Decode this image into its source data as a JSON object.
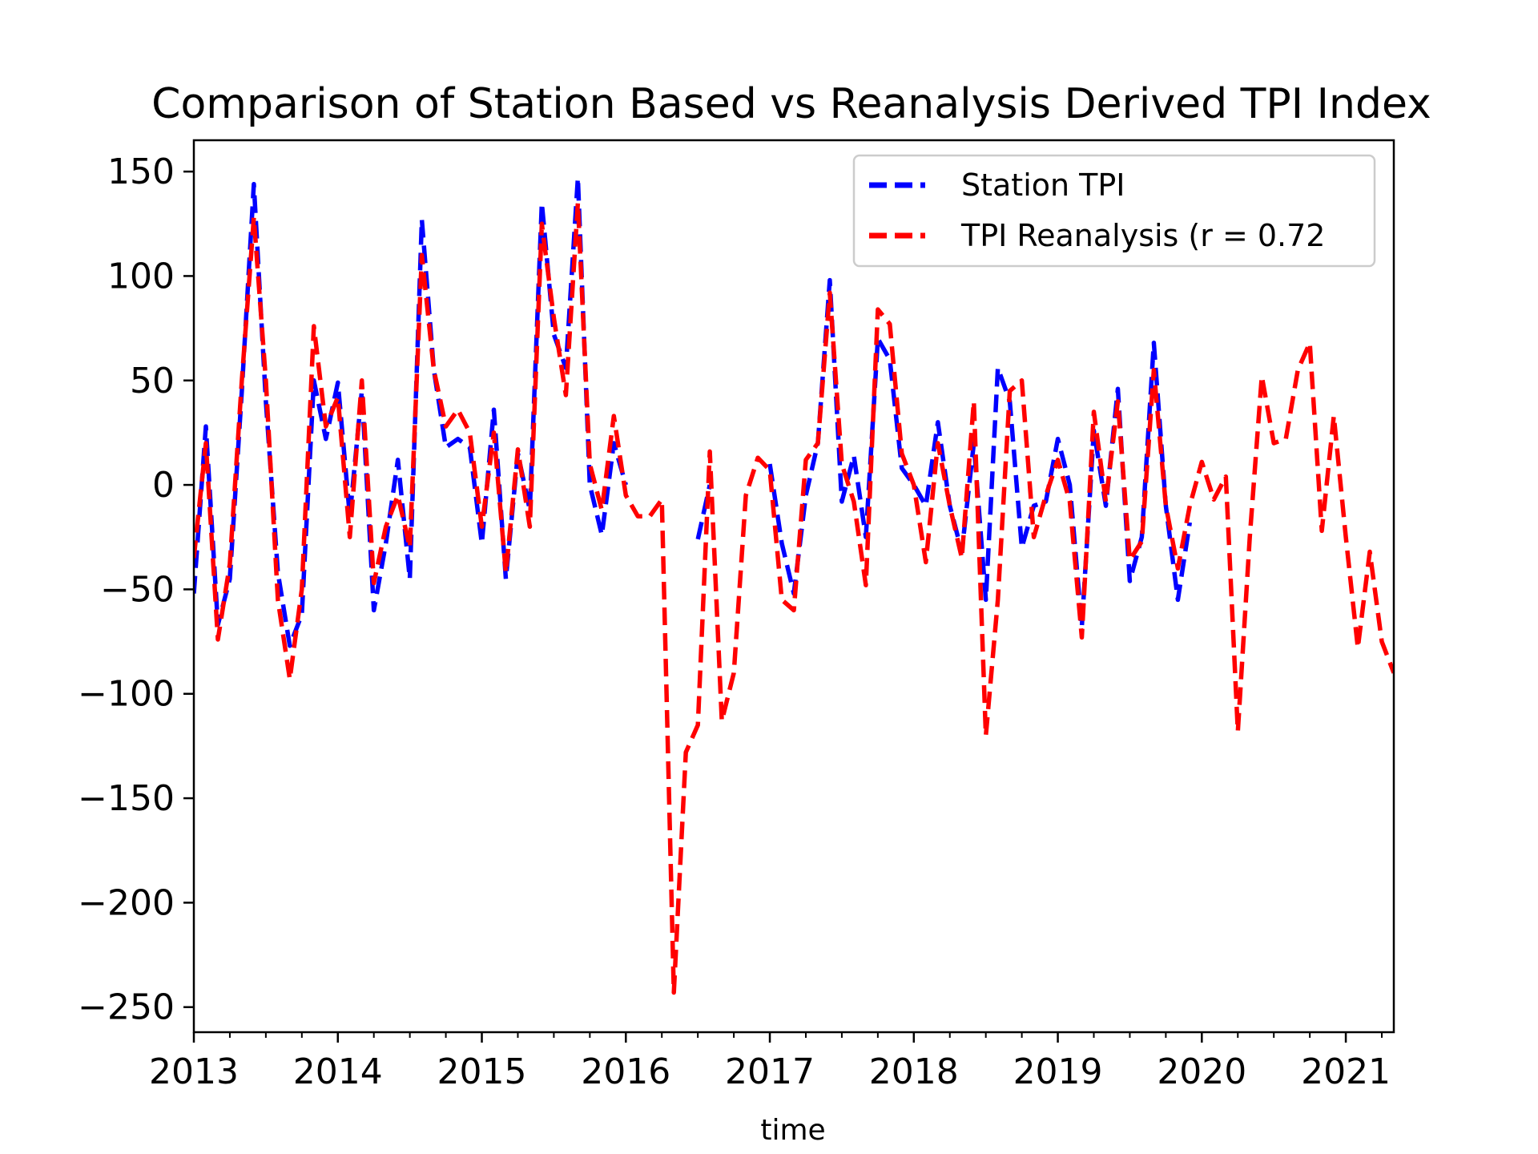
{
  "chart_data": {
    "type": "line",
    "title": "Comparison of Station Based vs Reanalysis Derived TPI Index",
    "xlabel": "time",
    "ylabel": "",
    "xlim": [
      "2013-01",
      "2021-05"
    ],
    "ylim": [
      -262,
      165
    ],
    "x_ticks": [
      "2013",
      "2014",
      "2015",
      "2016",
      "2017",
      "2018",
      "2019",
      "2020",
      "2021"
    ],
    "y_ticks": [
      150,
      100,
      50,
      0,
      -50,
      -100,
      -150,
      -200,
      -250
    ],
    "y_tick_labels": [
      "150",
      "100",
      "50",
      "0",
      "−50",
      "−100",
      "−150",
      "−200",
      "−250"
    ],
    "grid": false,
    "legend_position": "top-right",
    "colors": {
      "station": "#0000ff",
      "reanalysis": "#ff0000"
    },
    "series": [
      {
        "name": "Station TPI",
        "color": "#0000ff",
        "style": "dashed",
        "points": [
          [
            "2013-01",
            -52
          ],
          [
            "2013-02",
            28
          ],
          [
            "2013-03",
            -67
          ],
          [
            "2013-04",
            -45
          ],
          [
            "2013-05",
            45
          ],
          [
            "2013-06",
            144
          ],
          [
            "2013-07",
            40
          ],
          [
            "2013-08",
            -42
          ],
          [
            "2013-09",
            -77
          ],
          [
            "2013-10",
            -62
          ],
          [
            "2013-11",
            50
          ],
          [
            "2013-12",
            22
          ],
          [
            "2014-01",
            49
          ],
          [
            "2014-02",
            -15
          ],
          [
            "2014-03",
            45
          ],
          [
            "2014-04",
            -60
          ],
          [
            "2014-05",
            -28
          ],
          [
            "2014-06",
            12
          ],
          [
            "2014-07",
            -45
          ],
          [
            "2014-08",
            127
          ],
          [
            "2014-09",
            55
          ],
          [
            "2014-10",
            18
          ],
          [
            "2014-11",
            22
          ],
          [
            "2014-12",
            18
          ],
          [
            "2015-01",
            -28
          ],
          [
            "2015-02",
            36
          ],
          [
            "2015-03",
            -45
          ],
          [
            "2015-04",
            15
          ],
          [
            "2015-05",
            -12
          ],
          [
            "2015-06",
            135
          ],
          [
            "2015-07",
            72
          ],
          [
            "2015-08",
            56
          ],
          [
            "2015-09",
            147
          ],
          [
            "2015-10",
            0
          ],
          [
            "2015-11",
            -24
          ],
          [
            "2015-12",
            20
          ],
          [
            "2016-01",
            0
          ],
          [
            "2016-02",
            null
          ],
          [
            "2016-03",
            null
          ],
          [
            "2016-04",
            null
          ],
          [
            "2016-05",
            null
          ],
          [
            "2016-06",
            null
          ],
          [
            "2016-07",
            -26
          ],
          [
            "2016-08",
            0
          ],
          [
            "2016-09",
            null
          ],
          [
            "2016-10",
            null
          ],
          [
            "2016-11",
            null
          ],
          [
            "2016-12",
            null
          ],
          [
            "2017-01",
            10
          ],
          [
            "2017-02",
            -28
          ],
          [
            "2017-03",
            -52
          ],
          [
            "2017-04",
            -5
          ],
          [
            "2017-05",
            20
          ],
          [
            "2017-06",
            98
          ],
          [
            "2017-07",
            -8
          ],
          [
            "2017-08",
            14
          ],
          [
            "2017-09",
            -25
          ],
          [
            "2017-10",
            70
          ],
          [
            "2017-11",
            60
          ],
          [
            "2017-12",
            8
          ],
          [
            "2018-01",
            0
          ],
          [
            "2018-02",
            -10
          ],
          [
            "2018-03",
            30
          ],
          [
            "2018-04",
            -10
          ],
          [
            "2018-05",
            -32
          ],
          [
            "2018-06",
            20
          ],
          [
            "2018-07",
            -55
          ],
          [
            "2018-08",
            56
          ],
          [
            "2018-09",
            40
          ],
          [
            "2018-10",
            -30
          ],
          [
            "2018-11",
            -10
          ],
          [
            "2018-12",
            -8
          ],
          [
            "2019-01",
            22
          ],
          [
            "2019-02",
            0
          ],
          [
            "2019-03",
            -68
          ],
          [
            "2019-04",
            26
          ],
          [
            "2019-05",
            -10
          ],
          [
            "2019-06",
            46
          ],
          [
            "2019-07",
            -46
          ],
          [
            "2019-08",
            -25
          ],
          [
            "2019-09",
            68
          ],
          [
            "2019-10",
            -10
          ],
          [
            "2019-11",
            -55
          ],
          [
            "2019-12",
            -18
          ],
          [
            "2020-01",
            null
          ],
          [
            "2020-02",
            null
          ],
          [
            "2020-03",
            null
          ],
          [
            "2020-04",
            null
          ],
          [
            "2020-05",
            null
          ],
          [
            "2020-06",
            null
          ],
          [
            "2020-07",
            null
          ],
          [
            "2020-08",
            null
          ],
          [
            "2020-09",
            null
          ],
          [
            "2020-10",
            null
          ],
          [
            "2020-11",
            null
          ],
          [
            "2020-12",
            null
          ],
          [
            "2021-01",
            null
          ],
          [
            "2021-02",
            null
          ],
          [
            "2021-03",
            null
          ],
          [
            "2021-04",
            null
          ],
          [
            "2021-05",
            null
          ]
        ]
      },
      {
        "name": "TPI Reanalysis (r = 0.72",
        "color": "#ff0000",
        "style": "dashed",
        "points": [
          [
            "2013-01",
            -35
          ],
          [
            "2013-02",
            20
          ],
          [
            "2013-03",
            -74
          ],
          [
            "2013-04",
            -38
          ],
          [
            "2013-05",
            50
          ],
          [
            "2013-06",
            128
          ],
          [
            "2013-07",
            50
          ],
          [
            "2013-08",
            -55
          ],
          [
            "2013-09",
            -93
          ],
          [
            "2013-10",
            -50
          ],
          [
            "2013-11",
            76
          ],
          [
            "2013-12",
            28
          ],
          [
            "2014-01",
            42
          ],
          [
            "2014-02",
            -25
          ],
          [
            "2014-03",
            50
          ],
          [
            "2014-04",
            -47
          ],
          [
            "2014-05",
            -20
          ],
          [
            "2014-06",
            -5
          ],
          [
            "2014-07",
            -30
          ],
          [
            "2014-08",
            110
          ],
          [
            "2014-09",
            55
          ],
          [
            "2014-10",
            28
          ],
          [
            "2014-11",
            36
          ],
          [
            "2014-12",
            25
          ],
          [
            "2015-01",
            -20
          ],
          [
            "2015-02",
            25
          ],
          [
            "2015-03",
            -42
          ],
          [
            "2015-04",
            17
          ],
          [
            "2015-05",
            -20
          ],
          [
            "2015-06",
            125
          ],
          [
            "2015-07",
            80
          ],
          [
            "2015-08",
            43
          ],
          [
            "2015-09",
            135
          ],
          [
            "2015-10",
            10
          ],
          [
            "2015-11",
            -12
          ],
          [
            "2015-12",
            33
          ],
          [
            "2016-01",
            -5
          ],
          [
            "2016-02",
            -15
          ],
          [
            "2016-03",
            -15
          ],
          [
            "2016-04",
            -7
          ],
          [
            "2016-05",
            -243
          ],
          [
            "2016-06",
            -128
          ],
          [
            "2016-07",
            -115
          ],
          [
            "2016-08",
            16
          ],
          [
            "2016-09",
            -113
          ],
          [
            "2016-10",
            -90
          ],
          [
            "2016-11",
            -5
          ],
          [
            "2016-12",
            13
          ],
          [
            "2017-01",
            7
          ],
          [
            "2017-02",
            -55
          ],
          [
            "2017-03",
            -60
          ],
          [
            "2017-04",
            12
          ],
          [
            "2017-05",
            20
          ],
          [
            "2017-06",
            92
          ],
          [
            "2017-07",
            10
          ],
          [
            "2017-08",
            -8
          ],
          [
            "2017-09",
            -48
          ],
          [
            "2017-10",
            84
          ],
          [
            "2017-11",
            77
          ],
          [
            "2017-12",
            15
          ],
          [
            "2018-01",
            0
          ],
          [
            "2018-02",
            -37
          ],
          [
            "2018-03",
            20
          ],
          [
            "2018-04",
            -10
          ],
          [
            "2018-05",
            -35
          ],
          [
            "2018-06",
            40
          ],
          [
            "2018-07",
            -120
          ],
          [
            "2018-08",
            -55
          ],
          [
            "2018-09",
            45
          ],
          [
            "2018-10",
            50
          ],
          [
            "2018-11",
            -25
          ],
          [
            "2018-12",
            -5
          ],
          [
            "2019-01",
            12
          ],
          [
            "2019-02",
            -8
          ],
          [
            "2019-03",
            -73
          ],
          [
            "2019-04",
            35
          ],
          [
            "2019-05",
            -8
          ],
          [
            "2019-06",
            40
          ],
          [
            "2019-07",
            -36
          ],
          [
            "2019-08",
            -27
          ],
          [
            "2019-09",
            55
          ],
          [
            "2019-10",
            -10
          ],
          [
            "2019-11",
            -40
          ],
          [
            "2019-12",
            -10
          ],
          [
            "2020-01",
            11
          ],
          [
            "2020-02",
            -7
          ],
          [
            "2020-03",
            4
          ],
          [
            "2020-04",
            -118
          ],
          [
            "2020-05",
            -25
          ],
          [
            "2020-06",
            52
          ],
          [
            "2020-07",
            20
          ],
          [
            "2020-08",
            22
          ],
          [
            "2020-09",
            55
          ],
          [
            "2020-10",
            68
          ],
          [
            "2020-11",
            -22
          ],
          [
            "2020-12",
            33
          ],
          [
            "2021-01",
            -25
          ],
          [
            "2021-02",
            -78
          ],
          [
            "2021-03",
            -32
          ],
          [
            "2021-04",
            -75
          ],
          [
            "2021-05",
            -90
          ]
        ]
      }
    ]
  }
}
